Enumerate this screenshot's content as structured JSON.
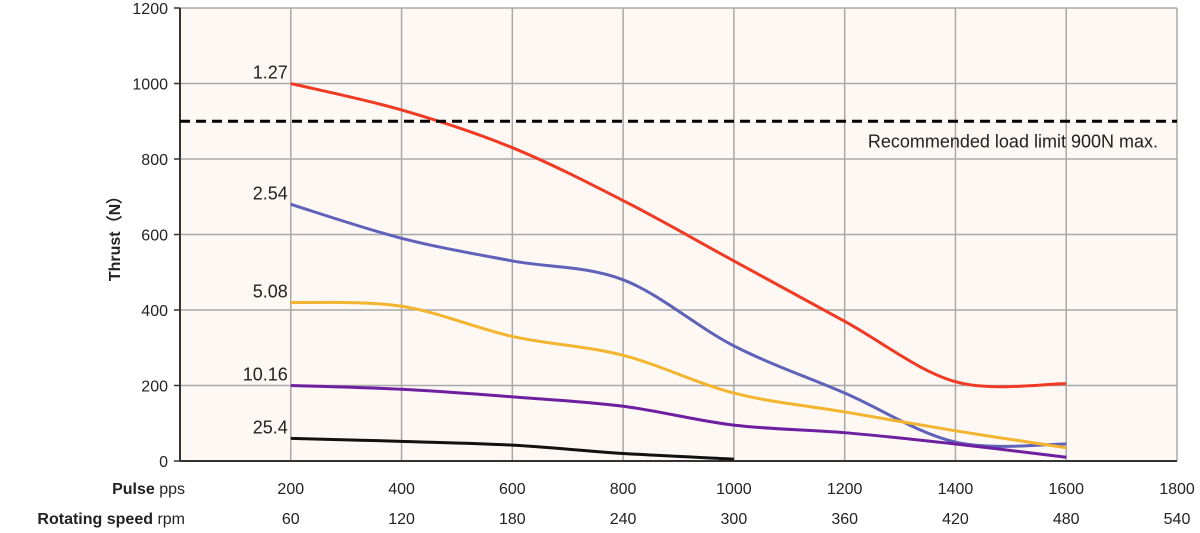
{
  "chart_data": {
    "type": "line",
    "ylabel": "Thrust（N）",
    "ylim": [
      0,
      1200
    ],
    "yticks": [
      0,
      200,
      400,
      600,
      800,
      1000,
      1200
    ],
    "xlim": [
      0,
      1800
    ],
    "xticks": [
      200,
      400,
      600,
      800,
      1000,
      1200,
      1400,
      1600,
      1800
    ],
    "x_axis_pulse": {
      "label_bold": "Pulse",
      "unit": "pps"
    },
    "x_axis_speed": {
      "label_bold": "Rotating speed",
      "unit": "rpm",
      "ticks": [
        60,
        120,
        180,
        240,
        300,
        360,
        420,
        480,
        540
      ]
    },
    "grid": true,
    "background": "#fdf8f4",
    "series": [
      {
        "name": "1.27",
        "color": "#f03a24",
        "x": [
          200,
          400,
          600,
          800,
          1000,
          1200,
          1400,
          1600
        ],
        "y": [
          1000,
          930,
          830,
          690,
          530,
          370,
          210,
          205
        ]
      },
      {
        "name": "2.54",
        "color": "#5f62b8",
        "x": [
          200,
          400,
          600,
          800,
          1000,
          1200,
          1400,
          1600
        ],
        "y": [
          680,
          590,
          530,
          480,
          305,
          180,
          50,
          45
        ]
      },
      {
        "name": "5.08",
        "color": "#f3b530",
        "x": [
          200,
          400,
          600,
          800,
          1000,
          1200,
          1400,
          1600
        ],
        "y": [
          420,
          410,
          330,
          280,
          180,
          130,
          80,
          35
        ]
      },
      {
        "name": "10.16",
        "color": "#6e1fa0",
        "x": [
          200,
          400,
          600,
          800,
          1000,
          1200,
          1400,
          1600
        ],
        "y": [
          200,
          190,
          170,
          145,
          95,
          75,
          45,
          10
        ]
      },
      {
        "name": "25.4",
        "color": "#111111",
        "x": [
          200,
          400,
          600,
          800,
          1000
        ],
        "y": [
          60,
          52,
          42,
          20,
          5
        ]
      }
    ],
    "reference_line": {
      "y": 900,
      "label": "Recommended load limit 900N max."
    }
  }
}
